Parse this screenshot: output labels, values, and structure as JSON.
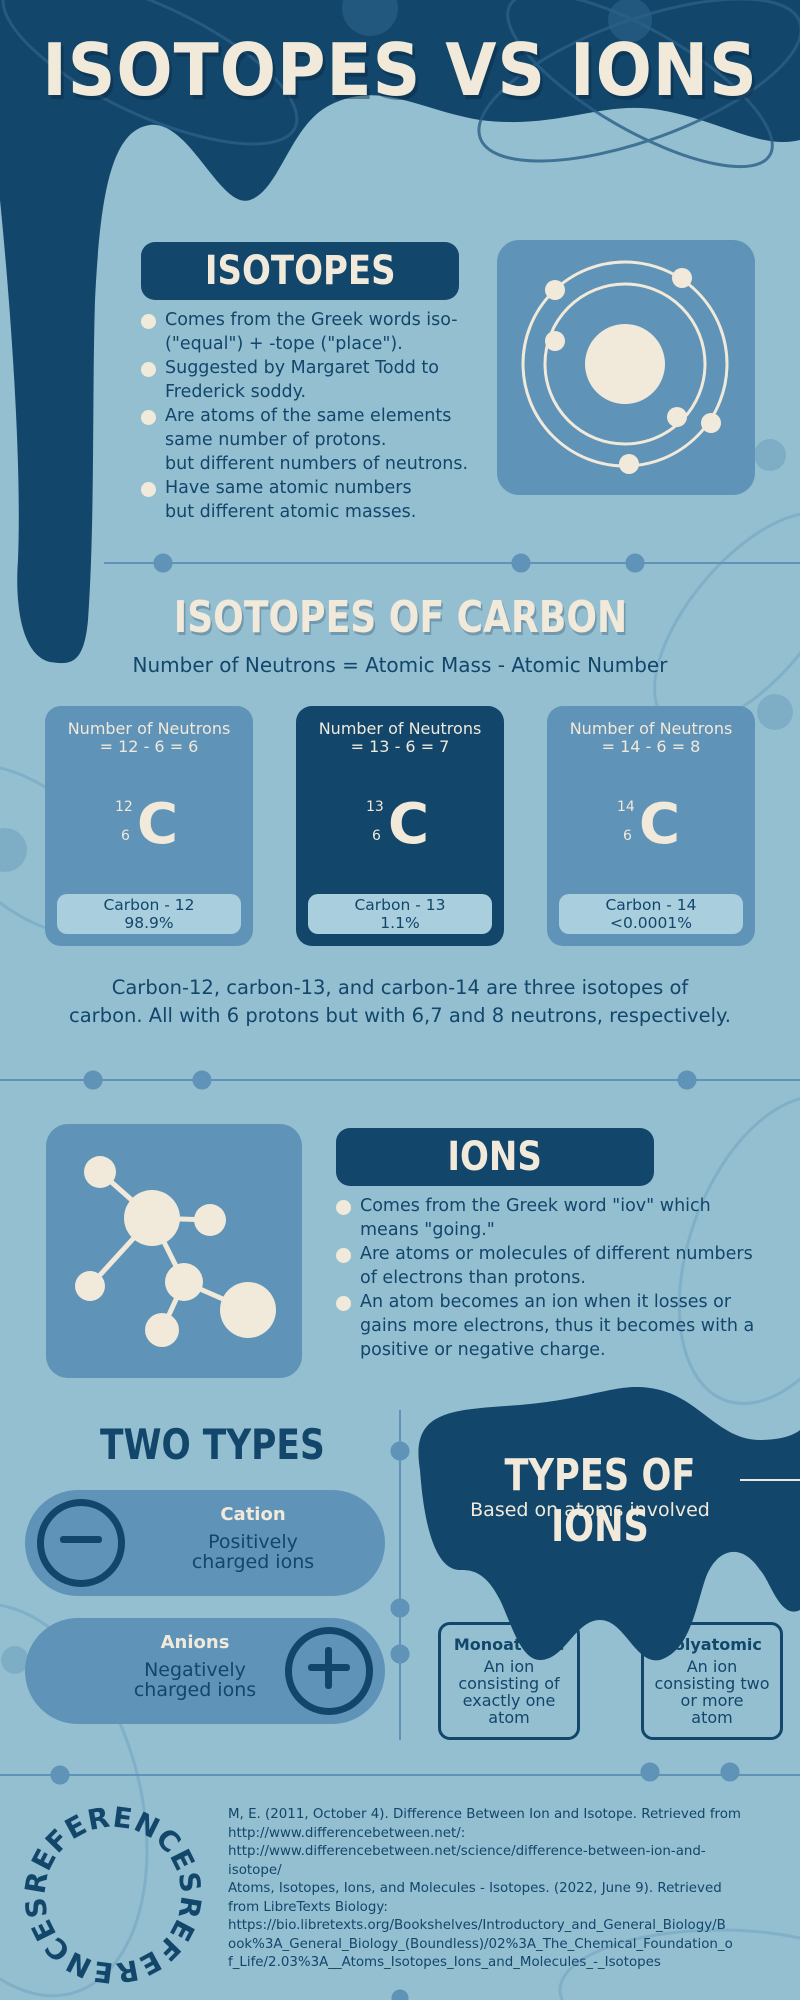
{
  "title": "ISOTOPES VS IONS",
  "colors": {
    "background": "#94bfd1",
    "navy": "#12466b",
    "mid_blue": "#5f93b7",
    "cream": "#f1e9da",
    "light_blue": "#a9cedd"
  },
  "isotopes": {
    "heading": "ISOTOPES",
    "bullets": [
      [
        "Comes from the Greek words iso-",
        "(\"equal\") + -tope (\"place\")."
      ],
      [
        "Suggested by Margaret Todd to",
        "Frederick soddy."
      ],
      [
        "Are atoms of the same elements",
        "same number of protons.",
        "but different numbers of neutrons."
      ],
      [
        "Have same atomic numbers",
        "but different atomic masses."
      ]
    ],
    "illustration_icon": "atom-orbit-icon"
  },
  "carbon": {
    "heading": "ISOTOPES OF CARBON",
    "formula": "Number of Neutrons = Atomic Mass - Atomic Number",
    "cards": [
      {
        "calc_1": "Number of Neutrons",
        "calc_2": "= 12 - 6 = 6",
        "mass": "12",
        "number": "6",
        "symbol": "C",
        "name": "Carbon - 12",
        "abundance": "98.9%"
      },
      {
        "calc_1": "Number of Neutrons",
        "calc_2": "= 13 - 6 = 7",
        "mass": "13",
        "number": "6",
        "symbol": "C",
        "name": "Carbon - 13",
        "abundance": "1.1%"
      },
      {
        "calc_1": "Number of Neutrons",
        "calc_2": "= 14 - 6 = 8",
        "mass": "14",
        "number": "6",
        "symbol": "C",
        "name": "Carbon - 14",
        "abundance": "<0.0001%"
      }
    ],
    "summary_1": "Carbon-12, carbon-13, and carbon-14 are three isotopes of",
    "summary_2": "carbon. All with 6 protons but with 6,7 and 8 neutrons, respectively."
  },
  "ions": {
    "heading": "IONS",
    "illustration_icon": "molecule-icon",
    "bullets": [
      [
        "Comes from the Greek word \"iov\" which",
        "means \"going.\""
      ],
      [
        "Are atoms or molecules of different numbers",
        "of electrons than protons."
      ],
      [
        "An atom becomes an ion when it losses or",
        "gains more electrons, thus it becomes with a",
        "positive or negative charge."
      ]
    ]
  },
  "two_types": {
    "heading": "TWO TYPES",
    "cation": {
      "name": "Cation",
      "desc_1": "Positively",
      "desc_2": "charged ions",
      "icon": "minus-circle-icon"
    },
    "anion": {
      "name": "Anions",
      "desc_1": "Negatively",
      "desc_2": "charged ions",
      "icon": "plus-circle-icon"
    }
  },
  "types_of_ions": {
    "heading": "TYPES OF IONS",
    "subheading": "Based on atoms involved",
    "monoatomic": {
      "name": "Monoatomic",
      "desc": [
        "An ion",
        "consisting of",
        "exactly one",
        "atom"
      ]
    },
    "polyatomic": {
      "name": "Polyatomic",
      "desc": [
        "An ion",
        "consisting two",
        "or more",
        "atom"
      ]
    }
  },
  "references": {
    "badge_text": "REFERENCES",
    "lines": [
      " M, E. (2011, October 4). Difference Between Ion and Isotope. Retrieved from",
      "http://www.differencebetween.net/:",
      "http://www.differencebetween.net/science/difference-between-ion-and-",
      "isotope/",
      "Atoms, Isotopes, Ions, and Molecules - Isotopes. (2022, June 9). Retrieved",
      "from LibreTexts Biology:",
      "https://bio.libretexts.org/Bookshelves/Introductory_and_General_Biology/B",
      "ook%3A_General_Biology_(Boundless)/02%3A_The_Chemical_Foundation_o",
      "f_Life/2.03%3A__Atoms_Isotopes_Ions_and_Molecules_-_Isotopes"
    ]
  }
}
